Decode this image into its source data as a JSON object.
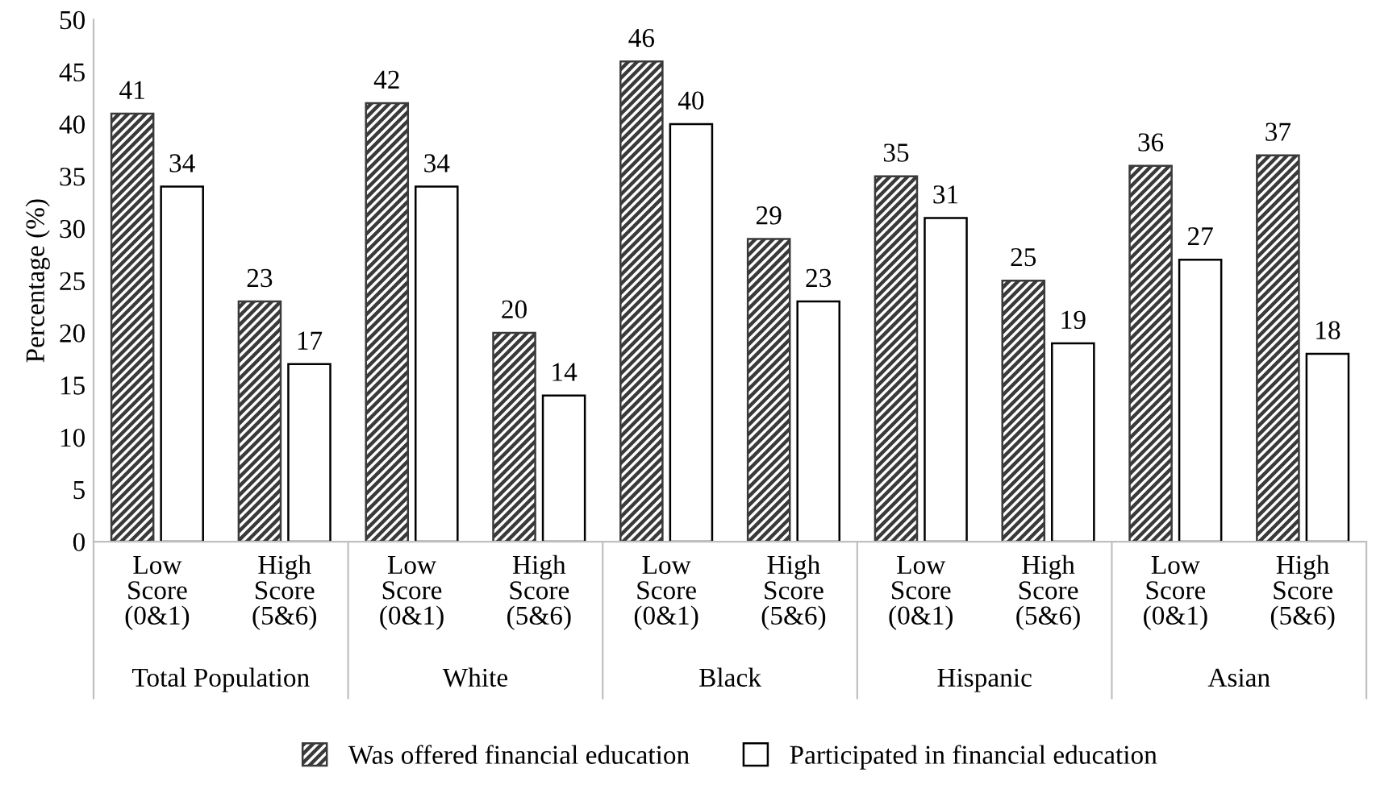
{
  "chart_data": {
    "type": "bar",
    "ylabel": "Percentage (%)",
    "categories": [
      "Low\nScore\n(0&1)",
      "High\nScore\n(5&6)",
      "Low\nScore\n(0&1)",
      "High\nScore\n(5&6)",
      "Low\nScore\n(0&1)",
      "High\nScore\n(5&6)",
      "Low\nScore\n(0&1)",
      "High\nScore\n(5&6)",
      "Low\nScore\n(0&1)",
      "High\nScore\n(5&6)"
    ],
    "series": [
      {
        "name": "Was offered financial education",
        "color": "#3a3a3a",
        "values": [
          41,
          23,
          42,
          20,
          46,
          29,
          35,
          25,
          36,
          37
        ]
      },
      {
        "name": "Participated in financial education",
        "color": "#ffffff",
        "values": [
          34,
          17,
          34,
          14,
          40,
          23,
          31,
          19,
          27,
          18
        ]
      }
    ],
    "annotations": [
      "Total Population",
      "White",
      "Black",
      "Hispanic",
      "Asian"
    ],
    "ylim": [
      0,
      50
    ],
    "yticks": [
      0,
      5,
      10,
      15,
      20,
      25,
      30,
      35,
      40,
      45,
      50
    ],
    "data_labels": true,
    "legend": "bottom",
    "grid": false
  }
}
